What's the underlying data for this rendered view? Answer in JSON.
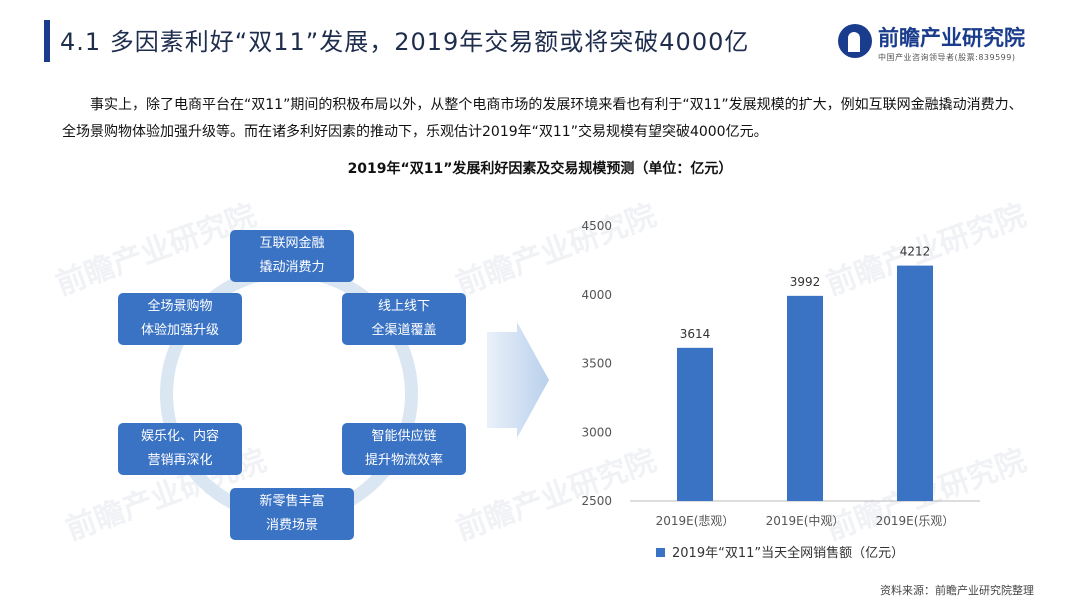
{
  "header": {
    "title": "4.1 多因素利好“双11”发展，2019年交易额或将突破4000亿",
    "logo_name": "前瞻产业研究院",
    "logo_sub": "中国产业咨询领导者(股票:839599)"
  },
  "paragraph": "事实上，除了电商平台在“双11”期间的积极布局以外，从整个电商市场的发展环境来看也有利于“双11”发展规模的扩大，例如互联网金融撬动消费力、全场景购物体验加强升级等。而在诸多利好因素的推动下，乐观估计2019年“双11”交易规模有望突破4000亿元。",
  "figure_title": "2019年“双11”发展利好因素及交易规模预测（单位：亿元）",
  "factors": [
    {
      "line1": "互联网金融",
      "line2": "撬动消费力"
    },
    {
      "line1": "线上线下",
      "line2": "全渠道覆盖"
    },
    {
      "line1": "智能供应链",
      "line2": "提升物流效率"
    },
    {
      "line1": "新零售丰富",
      "line2": "消费场景"
    },
    {
      "line1": "娱乐化、内容",
      "line2": "营销再深化"
    },
    {
      "line1": "全场景购物",
      "line2": "体验加强升级"
    }
  ],
  "watermark": "前瞻产业研究院",
  "chart_data": {
    "type": "bar",
    "categories": [
      "2019E(悲观）",
      "2019E(中观）",
      "2019E(乐观）"
    ],
    "series": [
      {
        "name": "2019年“双11”当天全网销售额（亿元）",
        "values": [
          3614,
          3992,
          4212
        ]
      }
    ],
    "ylim": [
      2500,
      4500
    ],
    "yticks": [
      2500,
      3000,
      3500,
      4000,
      4500
    ],
    "legend_position": "bottom",
    "color": "#3b73c4",
    "grid": false
  },
  "source": "资料来源：前瞻产业研究院整理"
}
